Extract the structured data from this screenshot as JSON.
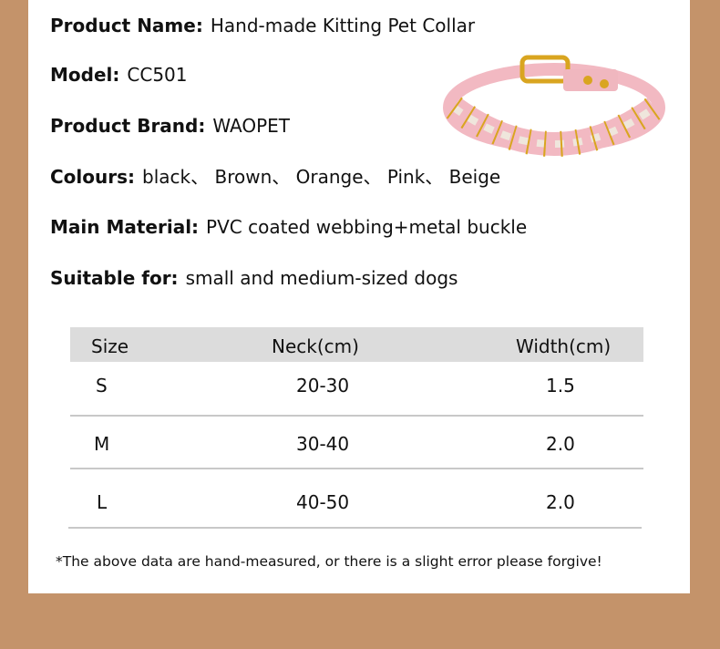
{
  "specs": [
    {
      "label": "Product Name:",
      "value": "Hand-made Kitting Pet Collar"
    },
    {
      "label": "Model:",
      "value": "CC501"
    },
    {
      "label": "Product Brand:",
      "value": "WAOPET"
    },
    {
      "label": "Colours:",
      "value": "black、 Brown、 Orange、 Pink、 Beige"
    },
    {
      "label": "Main Material:",
      "value": "PVC coated webbing+metal buckle"
    },
    {
      "label": "Suitable for:",
      "value": "small and medium-sized dogs"
    }
  ],
  "table": {
    "headers": [
      "Size",
      "Neck(cm)",
      "Width(cm)"
    ],
    "rows": [
      [
        "S",
        "20-30",
        "1.5"
      ],
      [
        "M",
        "30-40",
        "2.0"
      ],
      [
        "L",
        "40-50",
        "2.0"
      ]
    ]
  },
  "note": "*The above data are hand-measured, or there is a slight error please forgive!",
  "colors": {
    "background": "#c4936a",
    "panel": "#ffffff",
    "header_bar": "#dcdcdc",
    "collar_pink": "#f2b9c2",
    "collar_gold": "#d9a520"
  },
  "image": {
    "subject": "pink braided dog collar with gold buckle"
  }
}
